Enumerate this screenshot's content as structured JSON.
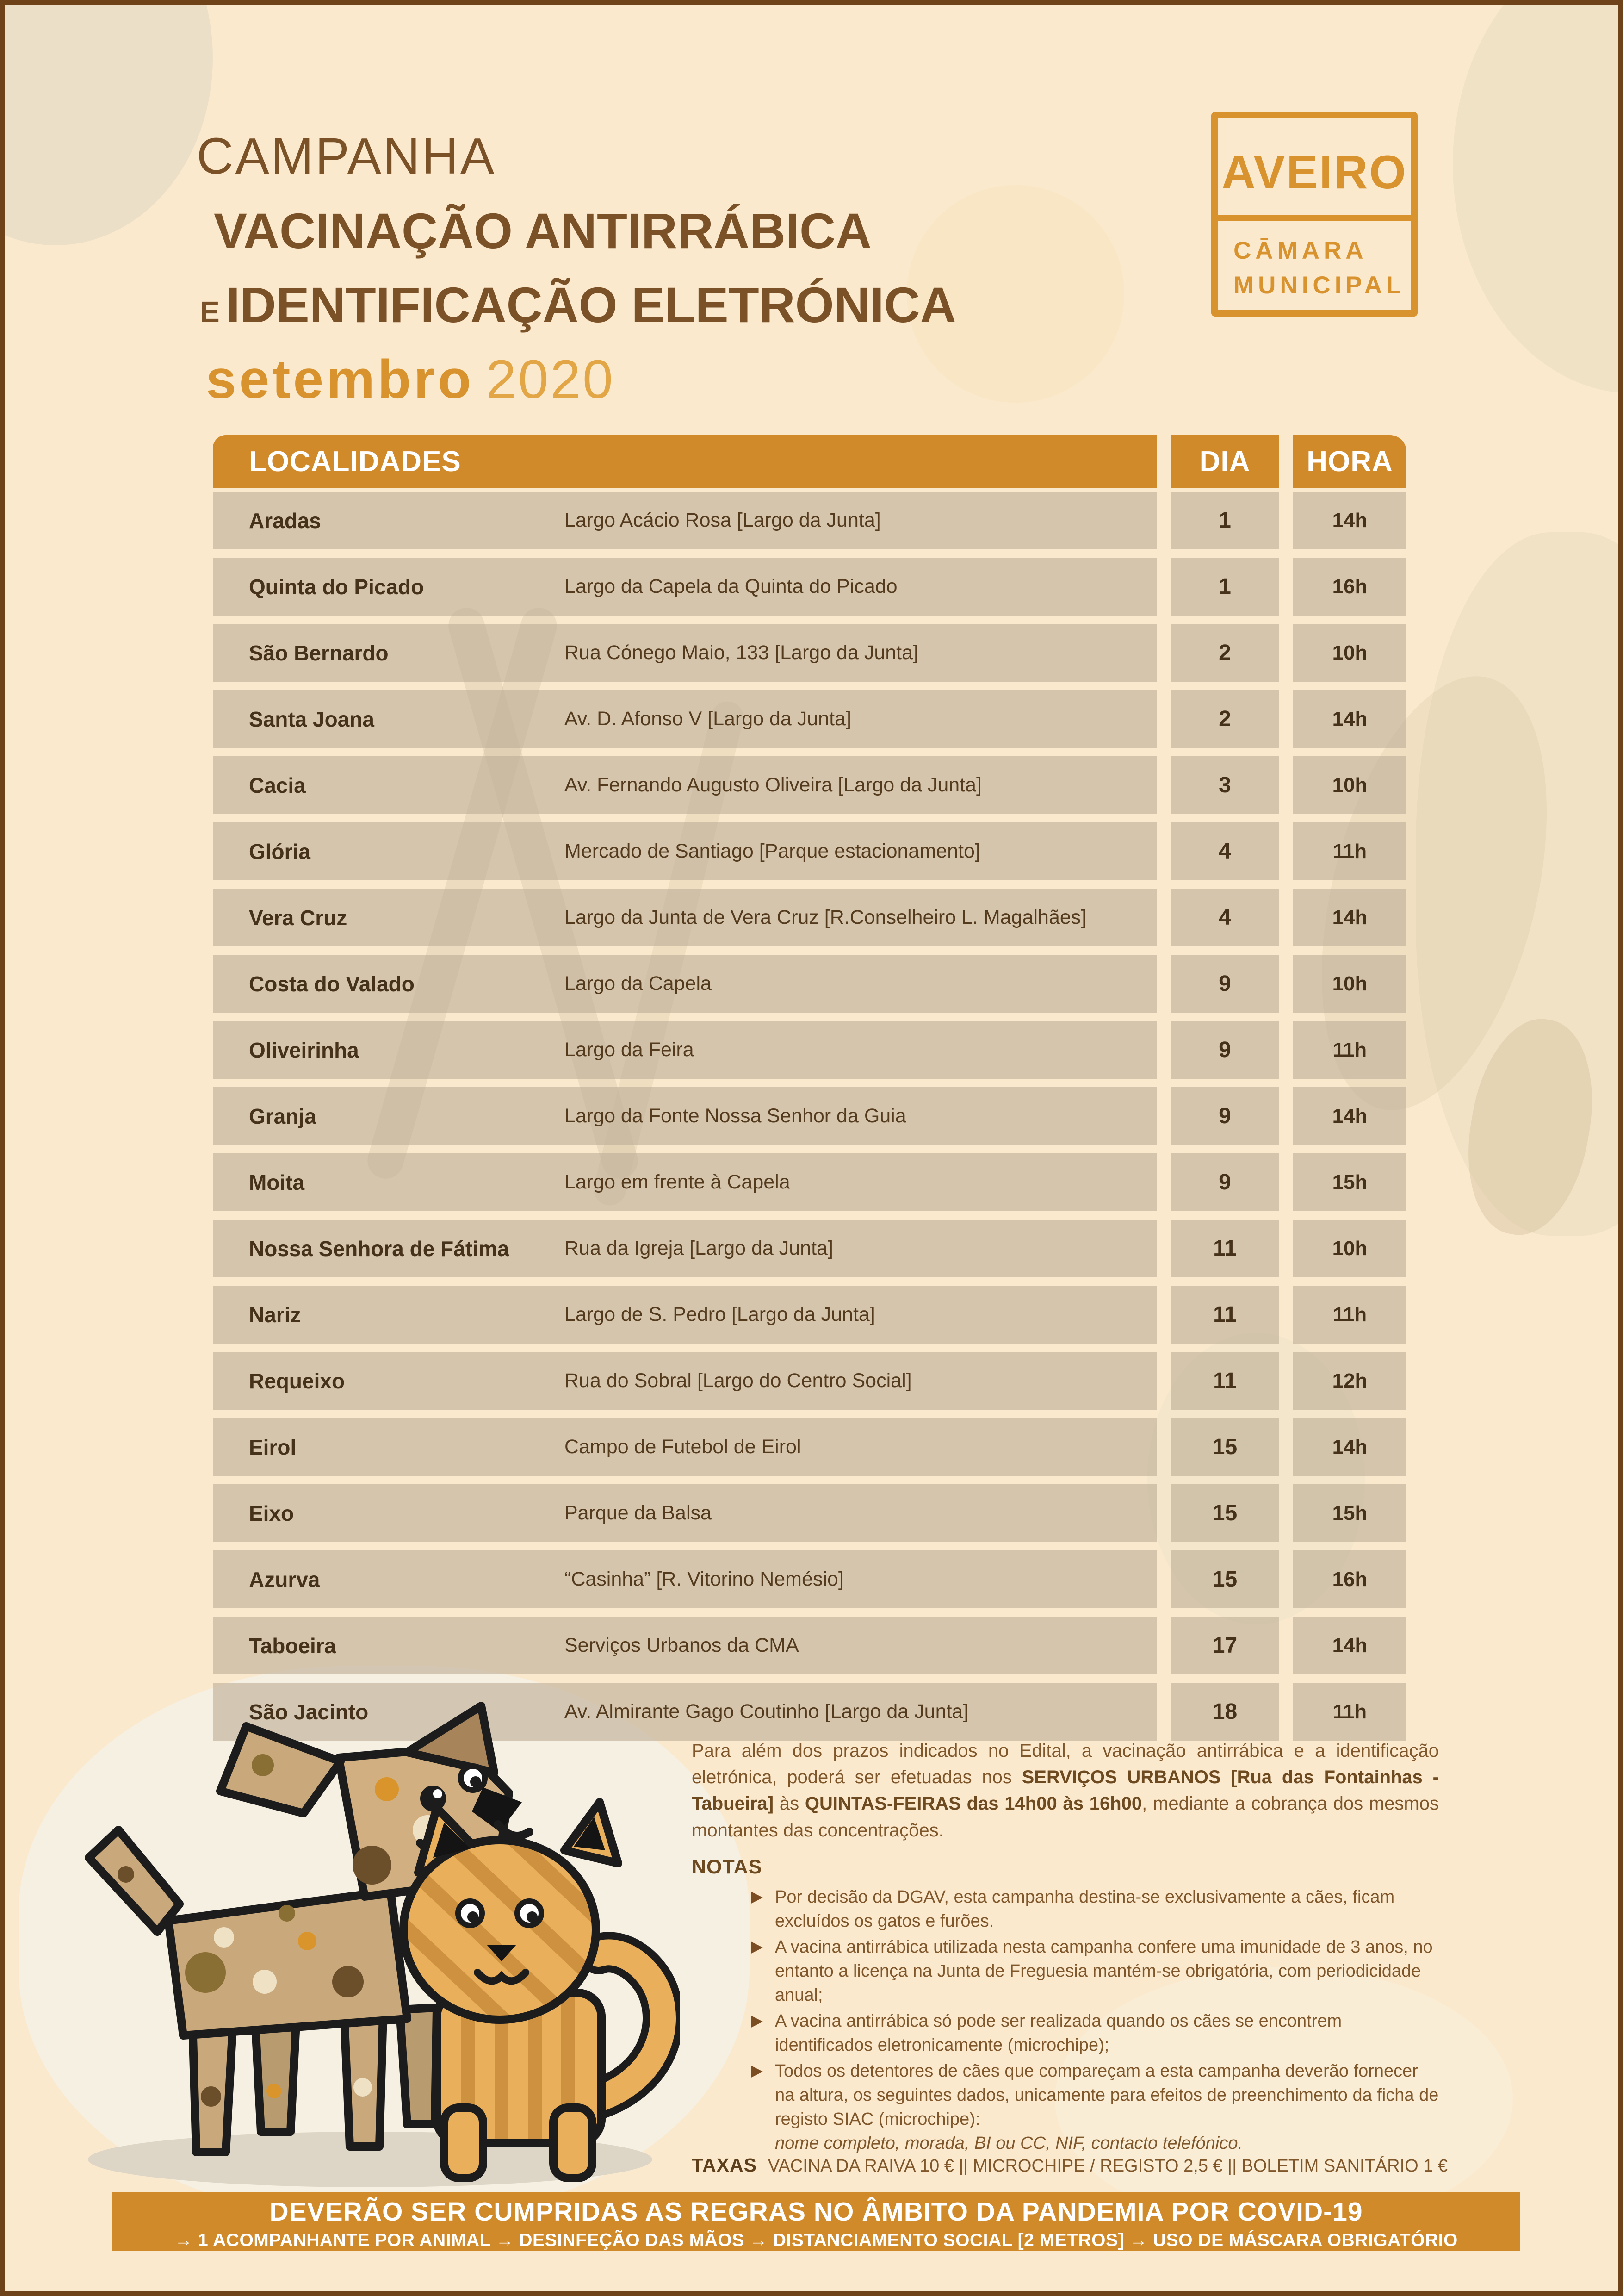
{
  "title": {
    "line1": "CAMPANHA",
    "line2": "VACINAÇÃO ANTIRRÁBICA",
    "line3_prefix": "E",
    "line3": "IDENTIFICAÇÃO ELETRÓNICA",
    "month": "setembro",
    "year": "2020"
  },
  "logo": {
    "city": "AVEIRO",
    "org_line1": "CĀMARA",
    "org_line2": "MUNICIPAL"
  },
  "table": {
    "headers": {
      "localities": "LOCALIDADES",
      "day": "DIA",
      "hour": "HORA"
    },
    "rows": [
      {
        "locality": "Aradas",
        "address": "Largo Acácio Rosa  [Largo da Junta]",
        "day": "1",
        "hour": "14h"
      },
      {
        "locality": "Quinta do Picado",
        "address": "Largo da Capela da Quinta do Picado",
        "day": "1",
        "hour": "16h"
      },
      {
        "locality": "São Bernardo",
        "address": "Rua Cónego Maio, 133  [Largo da Junta]",
        "day": "2",
        "hour": "10h"
      },
      {
        "locality": "Santa Joana",
        "address": "Av. D. Afonso V   [Largo da Junta]",
        "day": "2",
        "hour": "14h"
      },
      {
        "locality": "Cacia",
        "address": "Av. Fernando Augusto Oliveira  [Largo da Junta]",
        "day": "3",
        "hour": "10h"
      },
      {
        "locality": "Glória",
        "address": "Mercado de Santiago [Parque estacionamento]",
        "day": "4",
        "hour": "11h"
      },
      {
        "locality": "Vera Cruz",
        "address": "Largo da Junta de Vera Cruz [R.Conselheiro L. Magalhães]",
        "day": "4",
        "hour": "14h"
      },
      {
        "locality": "Costa do Valado",
        "address": "Largo da Capela",
        "day": "9",
        "hour": "10h"
      },
      {
        "locality": "Oliveirinha",
        "address": "Largo da Feira",
        "day": "9",
        "hour": "11h"
      },
      {
        "locality": "Granja",
        "address": "Largo da Fonte Nossa Senhor da Guia",
        "day": "9",
        "hour": "14h"
      },
      {
        "locality": "Moita",
        "address": "Largo em frente à Capela",
        "day": "9",
        "hour": "15h"
      },
      {
        "locality": "Nossa Senhora de Fátima",
        "address": "Rua da Igreja   [Largo da Junta]",
        "day": "11",
        "hour": "10h"
      },
      {
        "locality": "Nariz",
        "address": "Largo de S. Pedro   [Largo da Junta]",
        "day": "11",
        "hour": "11h"
      },
      {
        "locality": "Requeixo",
        "address": "Rua do Sobral  [Largo do Centro Social]",
        "day": "11",
        "hour": "12h"
      },
      {
        "locality": "Eirol",
        "address": "Campo de Futebol de Eirol",
        "day": "15",
        "hour": "14h"
      },
      {
        "locality": "Eixo",
        "address": "Parque da Balsa",
        "day": "15",
        "hour": "15h"
      },
      {
        "locality": "Azurva",
        "address": "“Casinha” [R. Vitorino Nemésio]",
        "day": "15",
        "hour": "16h"
      },
      {
        "locality": "Taboeira",
        "address": "Serviços Urbanos da CMA",
        "day": "17",
        "hour": "14h"
      },
      {
        "locality": "São Jacinto",
        "address": "Av. Almirante Gago Coutinho  [Largo da Junta]",
        "day": "18",
        "hour": "11h"
      }
    ]
  },
  "notes": {
    "intro_parts": [
      {
        "text": "Para além dos prazos indicados no Edital, a vacinação antirrábica e a identificação eletrónica, poderá ser efetuadas nos ",
        "bold": false
      },
      {
        "text": "SERVIÇOS URBANOS [Rua das Fontainhas - Tabueira]",
        "bold": true
      },
      {
        "text": " às  ",
        "bold": false
      },
      {
        "text": "QUINTAS-FEIRAS das 14h00 às 16h00",
        "bold": true
      },
      {
        "text": ", mediante a cobrança dos mesmos montantes das concentrações.",
        "bold": false
      }
    ],
    "notas_label": "NOTAS",
    "bullets": [
      {
        "text": "Por decisão da DGAV, esta campanha destina-se exclusivamente a cães, ficam excluídos os gatos e furões."
      },
      {
        "text": "A vacina antirrábica utilizada nesta campanha confere uma imunidade de 3 anos, no entanto a licença na Junta de Freguesia mantém-se obrigatória, com periodicidade anual;"
      },
      {
        "text": "A vacina antirrábica só pode ser realizada quando os cães se encontrem identificados eletronicamente (microchipe);"
      },
      {
        "text": "Todos os detentores de cães que compareçam a esta campanha deverão fornecer na altura, os seguintes dados, unicamente para efeitos de preenchimento da ficha de registo SIAC (microchipe):",
        "italic_tail": "nome completo, morada, BI ou CC, NIF, contacto telefónico."
      }
    ],
    "taxas_label": "TAXAS",
    "taxas_items": [
      "VACINA DA RAIVA  10 €",
      "MICROCHIPE / REGISTO  2,5 €",
      "BOLETIM SANITÁRIO  1 €"
    ],
    "taxas_separator": "||"
  },
  "banner": {
    "line1": "DEVERÃO SER CUMPRIDAS AS REGRAS NO ÂMBITO DA PANDEMIA POR COVID-19",
    "line2": "→ 1 ACOMPANHANTE POR ANIMAL → DESINFEÇÃO DAS MÃOS → DISTANCIAMENTO SOCIAL [2 METROS] → USO DE MÁSCARA OBRIGATÓRIO"
  },
  "colors": {
    "accent_orange": "#d18a2a",
    "logo_orange": "#d8932f",
    "title_brown": "#7b5228",
    "row_bg": "#d5cbb9",
    "row_text": "#46311a",
    "notes_brown": "#7f572b",
    "page_cream": "#fbe9ce",
    "frame_brown": "#6e431a",
    "banner_text": "#ffffff"
  },
  "illustration": {
    "name": "dog-and-cat-cartoon"
  }
}
